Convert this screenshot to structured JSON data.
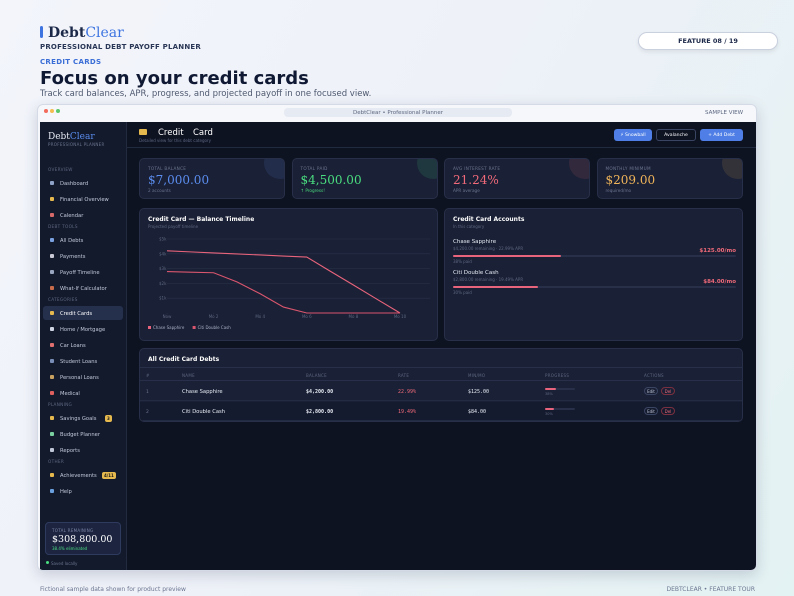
{
  "header": {
    "brand_a": "Debt",
    "brand_b": "Clear",
    "tagline": "PROFESSIONAL DEBT PAYOFF PLANNER",
    "feature": "FEATURE 08 / 19",
    "eyebrow": "CREDIT CARDS",
    "title": "Focus on your credit cards",
    "subtitle": "Track card balances, APR, progress, and projected payoff in one focused view."
  },
  "browser": {
    "address": "DebtClear  •  Professional Planner",
    "badge": "SAMPLE VIEW"
  },
  "sidebar": {
    "brand_a": "Debt",
    "brand_b": "Clear",
    "tagline": "PROFESSIONAL PLANNER",
    "sections": [
      {
        "title": "OVERVIEW",
        "items": [
          {
            "label": "Dashboard"
          },
          {
            "label": "Financial Overview"
          },
          {
            "label": "Calendar"
          }
        ]
      },
      {
        "title": "DEBT TOOLS",
        "items": [
          {
            "label": "All Debts"
          },
          {
            "label": "Payments"
          },
          {
            "label": "Payoff Timeline"
          },
          {
            "label": "What-If Calculator"
          }
        ]
      },
      {
        "title": "CATEGORIES",
        "items": [
          {
            "label": "Credit Cards"
          },
          {
            "label": "Home / Mortgage"
          },
          {
            "label": "Car Loans"
          },
          {
            "label": "Student Loans"
          },
          {
            "label": "Personal Loans"
          },
          {
            "label": "Medical"
          }
        ]
      },
      {
        "title": "PLANNING",
        "items": [
          {
            "label": "Savings Goals",
            "badge": "3"
          },
          {
            "label": "Budget Planner"
          },
          {
            "label": "Reports"
          }
        ]
      },
      {
        "title": "OTHER",
        "items": [
          {
            "label": "Achievements",
            "badge": "4/11"
          },
          {
            "label": "Help"
          }
        ]
      }
    ],
    "summary": {
      "label": "TOTAL REMAINING",
      "value": "$308,800.00",
      "note": "38.4% eliminated"
    },
    "status": "Saved locally"
  },
  "topbar": {
    "title_a": "Credit",
    "title_b": "Card",
    "subtitle": "Detailed view for this debt category",
    "buttons": [
      "⚡ Snowball",
      "Avalanche",
      "+ Add Debt"
    ]
  },
  "stats": [
    {
      "label": "TOTAL BALANCE",
      "value": "$7,000.00",
      "note": "2 accounts"
    },
    {
      "label": "TOTAL PAID",
      "value": "$4,500.00",
      "note": "↑ Progress!"
    },
    {
      "label": "AVG INTEREST RATE",
      "value": "21.24%",
      "note": "APR average"
    },
    {
      "label": "MONTHLY MINIMUM",
      "value": "$209.00",
      "note": "required/mo"
    }
  ],
  "chart_data": {
    "type": "line",
    "title": "Credit Card — Balance Timeline",
    "subtitle": "Projected payoff timeline",
    "x": [
      0,
      1,
      2,
      3,
      4,
      5,
      6,
      7,
      8,
      9,
      10
    ],
    "xlim": [
      0,
      10
    ],
    "xticks": [
      {
        "value": 0,
        "label": "Now"
      },
      {
        "value": 2,
        "label": "Mo 2"
      },
      {
        "value": 4,
        "label": "Mo 4"
      },
      {
        "value": 6,
        "label": "Mo 6"
      },
      {
        "value": 8,
        "label": "Mo 8"
      },
      {
        "value": 10,
        "label": "Mo 10"
      }
    ],
    "ylim": [
      0,
      5000
    ],
    "yticks": [
      {
        "value": 1000,
        "label": "$1k"
      },
      {
        "value": 2000,
        "label": "$2k"
      },
      {
        "value": 3000,
        "label": "$3k"
      },
      {
        "value": 4000,
        "label": "$4k"
      },
      {
        "value": 5000,
        "label": "$5k"
      }
    ],
    "grid": true,
    "series": [
      {
        "name": "Chase Sapphire",
        "color": "#e8647c",
        "values": [
          4200,
          4130,
          4060,
          3990,
          3920,
          3850,
          3780,
          2830,
          1890,
          940,
          0
        ]
      },
      {
        "name": "Citi Double Cash",
        "color": "#d9566e",
        "values": [
          2800,
          2760,
          2720,
          2100,
          1300,
          400,
          0,
          0,
          0,
          0,
          0
        ]
      }
    ]
  },
  "accounts": {
    "title": "Credit Card Accounts",
    "subtitle": "In this category",
    "items": [
      {
        "name": "Chase Sapphire",
        "detail": "$4,200.00 remaining · 22.99% APR",
        "payment": "$125.00/mo",
        "progress": 38,
        "progress_label": "38% paid"
      },
      {
        "name": "Citi Double Cash",
        "detail": "$2,800.00 remaining · 19.49% APR",
        "payment": "$84.00/mo",
        "progress": 30,
        "progress_label": "30% paid"
      }
    ]
  },
  "table": {
    "title": "All Credit Card Debts",
    "columns": [
      "#",
      "NAME",
      "BALANCE",
      "RATE",
      "MIN/MO",
      "PROGRESS",
      "ACTIONS"
    ],
    "rows": [
      {
        "index": "1",
        "name": "Chase Sapphire",
        "balance": "$4,200.00",
        "rate": "22.99%",
        "minimum": "$125.00",
        "progress": 38,
        "progress_label": "38%",
        "actions": [
          "Edit",
          "Del"
        ]
      },
      {
        "index": "2",
        "name": "Citi Double Cash",
        "balance": "$2,800.00",
        "rate": "19.49%",
        "minimum": "$84.00",
        "progress": 30,
        "progress_label": "30%",
        "actions": [
          "Edit",
          "Del"
        ]
      }
    ]
  },
  "footer": {
    "left": "Fictional sample data shown for product preview",
    "right": "DEBTCLEAR  •  FEATURE TOUR"
  }
}
